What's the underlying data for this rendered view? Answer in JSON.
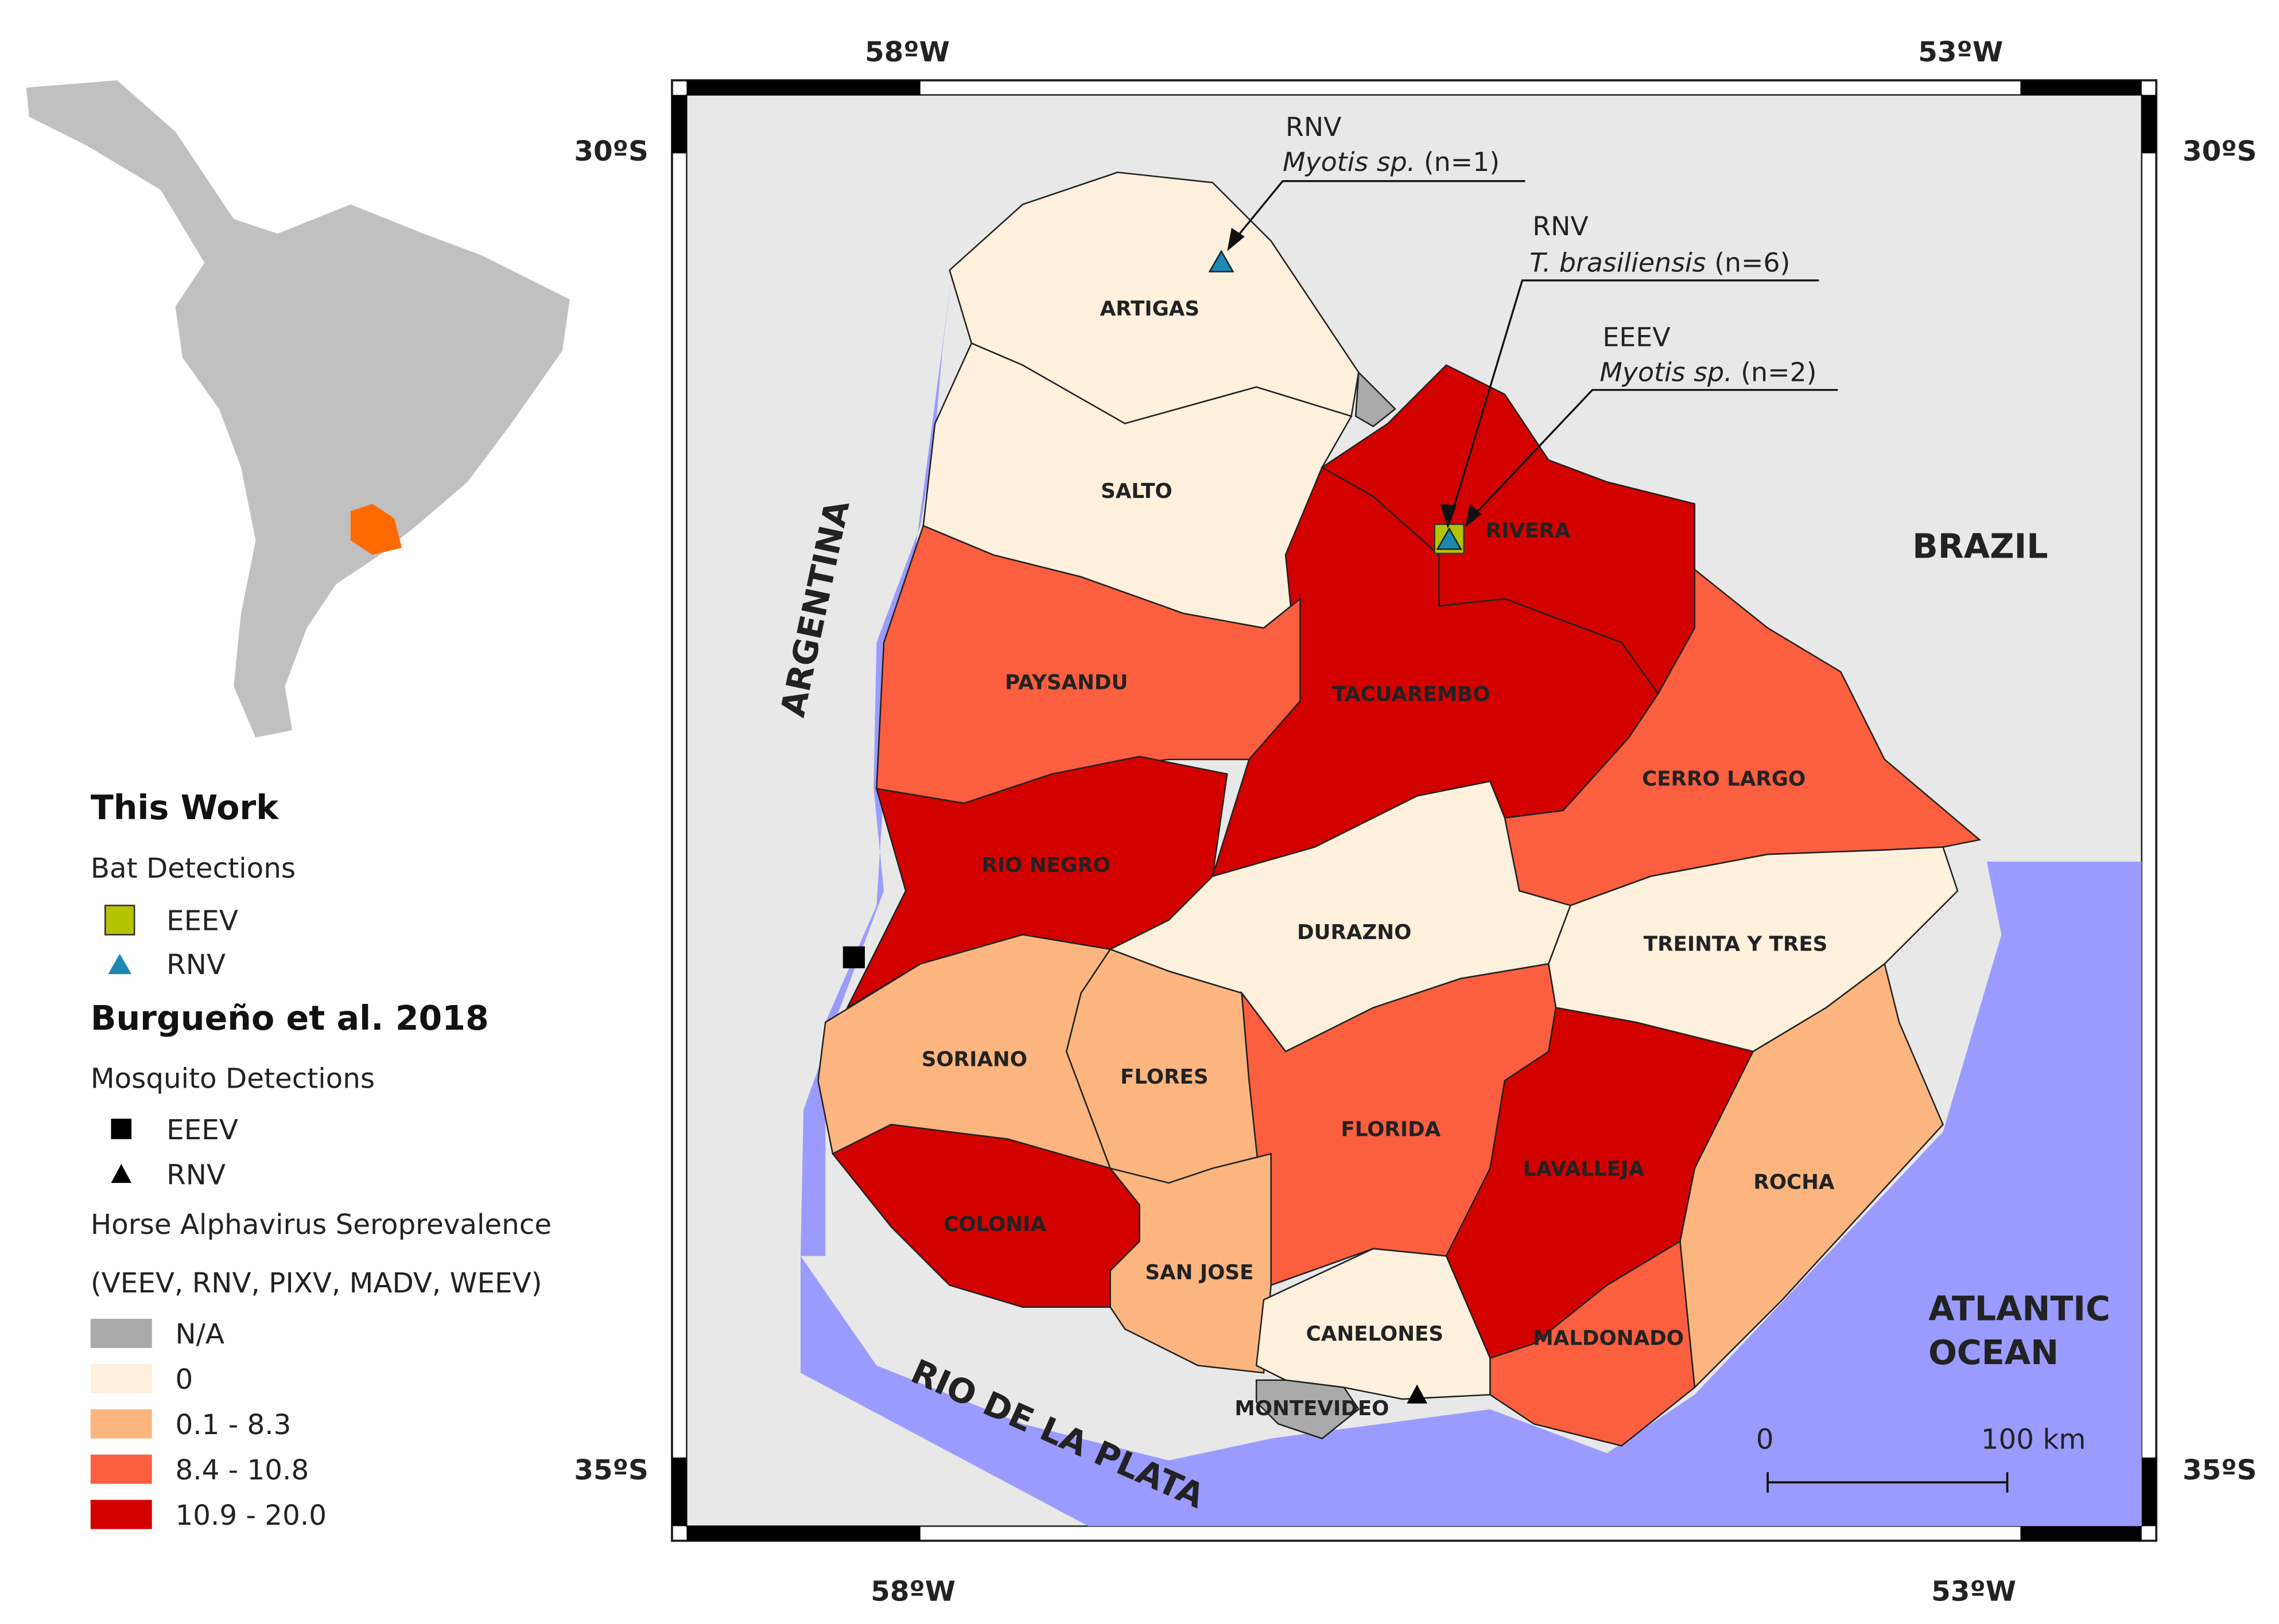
{
  "map": {
    "coordinates": {
      "top": [
        "58ºW",
        "53ºW"
      ],
      "bottom": [
        "58ºW",
        "53ºW"
      ],
      "left": [
        "30ºS",
        "35ºS"
      ],
      "right": [
        "30ºS",
        "35ºS"
      ]
    },
    "regions": {
      "argentina": "ARGENTINA",
      "brazil": "BRAZIL",
      "ocean": [
        "ATLANTIC",
        "OCEAN"
      ],
      "river": "RIO DE LA PLATA"
    },
    "departments": [
      "ARTIGAS",
      "SALTO",
      "RIVERA",
      "PAYSANDU",
      "TACUAREMBO",
      "CERRO LARGO",
      "RIO NEGRO",
      "DURAZNO",
      "TREINTA Y TRES",
      "SORIANO",
      "FLORES",
      "FLORIDA",
      "LAVALLEJA",
      "ROCHA",
      "COLONIA",
      "SAN JOSE",
      "CANELONES",
      "MALDONADO",
      "MONTEVIDEO"
    ],
    "annotations": [
      {
        "virus": "RNV",
        "host": "Myotis sp.",
        "count": "(n=1)"
      },
      {
        "virus": "RNV",
        "host": "T. brasiliensis",
        "count": "(n=6)"
      },
      {
        "virus": "EEEV",
        "host": "Myotis sp.",
        "count": "(n=2)"
      }
    ],
    "scale_bar": [
      "0",
      "100 km"
    ]
  },
  "legend": {
    "title": "This Work",
    "bat_heading": "Bat Detections",
    "bat_items": [
      "EEEV",
      "RNV"
    ],
    "reference": "Burgueño et al. 2018",
    "mosquito_heading": "Mosquito Detections",
    "mosquito_items": [
      "EEEV",
      "RNV"
    ],
    "sero_heading": "Horse Alphavirus Seroprevalence",
    "sero_subheading": "(VEEV, RNV, PIXV, MADV, WEEV)",
    "classes": [
      {
        "label": "N/A",
        "color": "#aaaaaa"
      },
      {
        "label": "0",
        "color": "#fdf0dc"
      },
      {
        "label": "0.1 - 8.3",
        "color": "#fdb57f"
      },
      {
        "label": "8.4 - 10.8",
        "color": "#fb5f3f"
      },
      {
        "label": "10.9 - 20.0",
        "color": "#d30000"
      }
    ]
  }
}
